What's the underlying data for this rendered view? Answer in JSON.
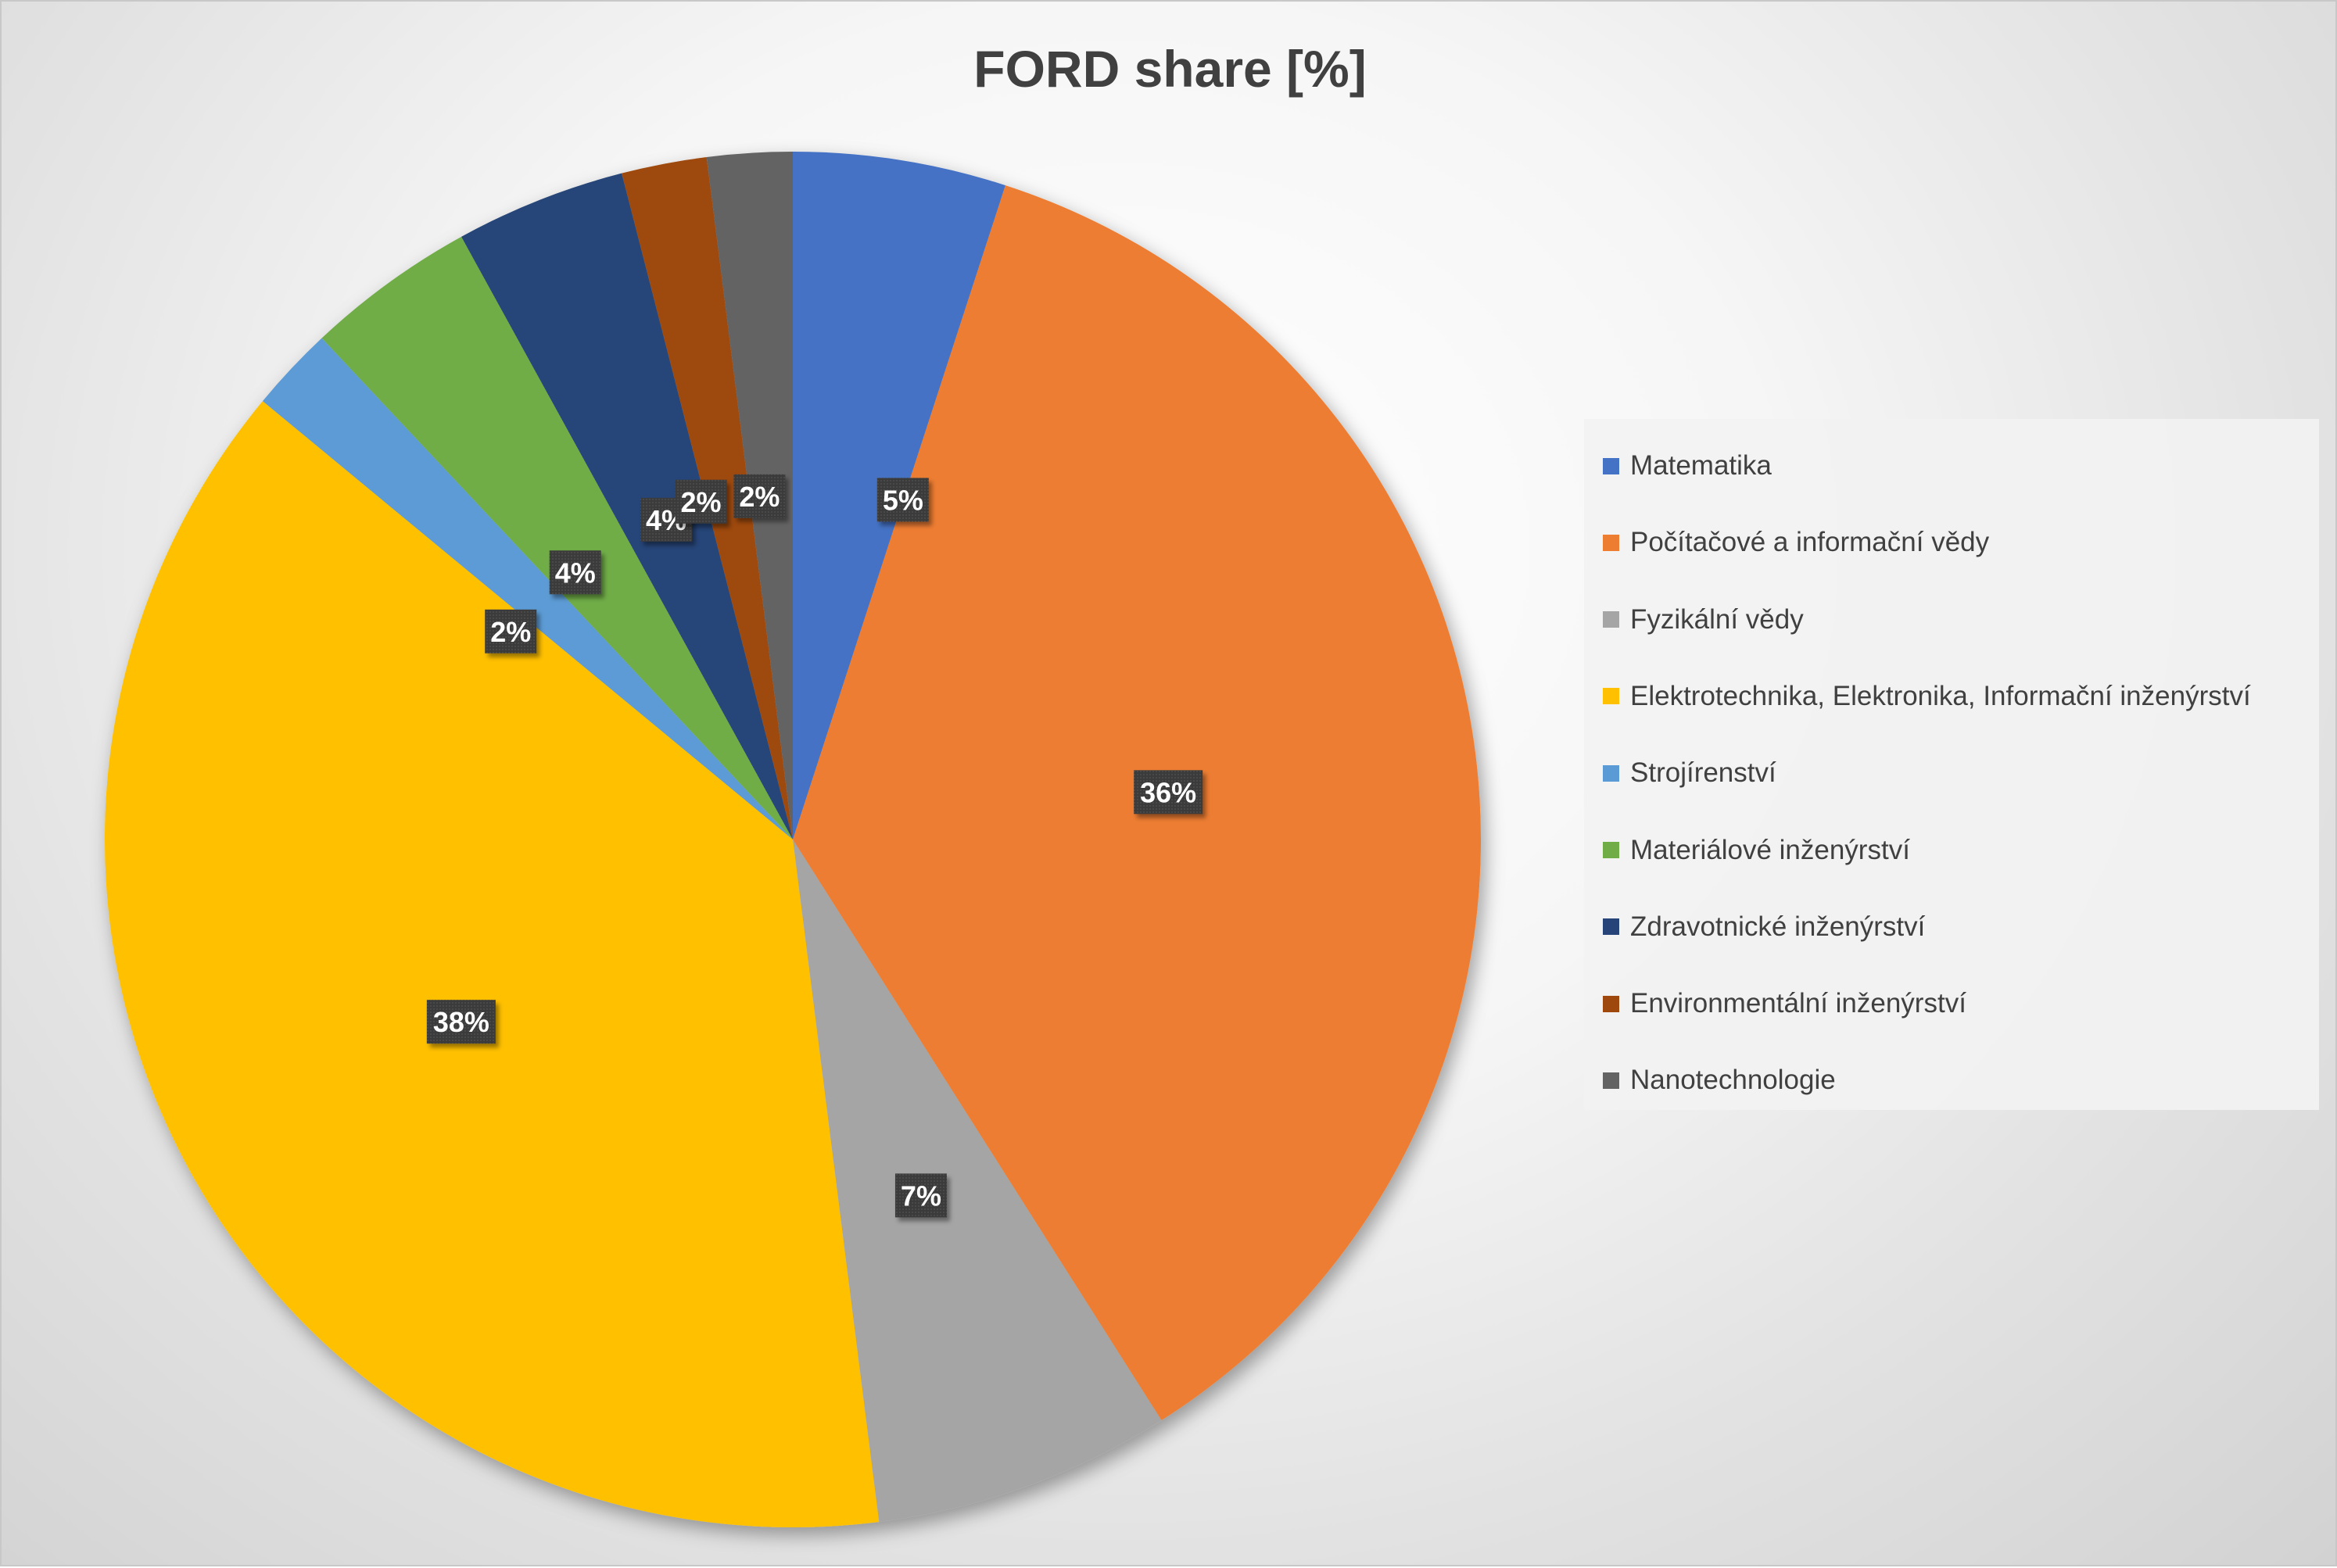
{
  "chart_data": {
    "type": "pie",
    "title": "FORD share [%]",
    "categories": [
      "Matematika",
      "Počítačové a informační vědy",
      "Fyzikální vědy",
      "Elektrotechnika, Elektronika, Informační inženýrství",
      "Strojírenství",
      "Materiálové inženýrství",
      "Zdravotnické inženýrství",
      "Environmentální inženýrství",
      "Nanotechnologie"
    ],
    "values": [
      5,
      36,
      7,
      38,
      2,
      4,
      4,
      2,
      2
    ],
    "data_labels": [
      "5%",
      "36%",
      "7%",
      "38%",
      "2%",
      "4%",
      "4%",
      "2%",
      "2%"
    ],
    "colors": [
      "#4472C4",
      "#ED7D31",
      "#A5A5A5",
      "#FFC000",
      "#5B9BD5",
      "#70AD47",
      "#264478",
      "#9E480E",
      "#636363"
    ],
    "legend_position": "right"
  }
}
